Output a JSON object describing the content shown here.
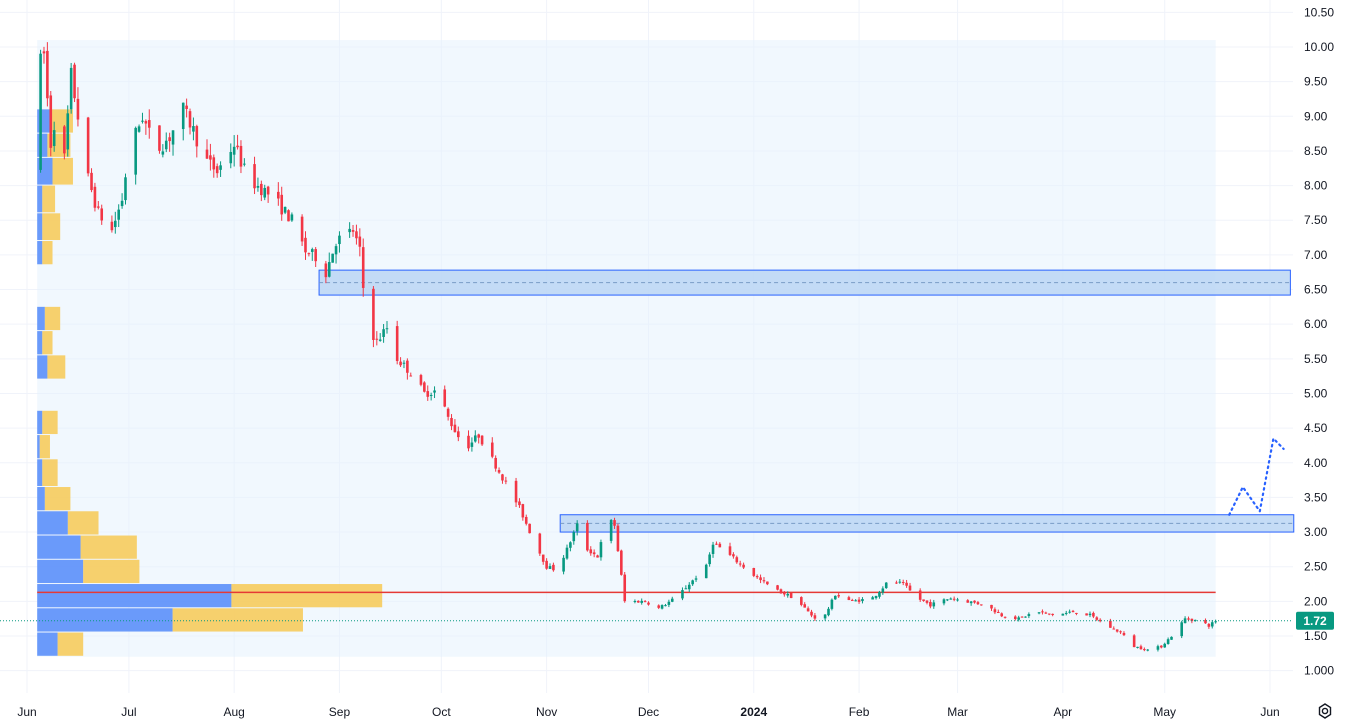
{
  "chart_data": {
    "type": "candlestick",
    "price_axis": {
      "ticks": [
        "10.50",
        "10.00",
        "9.50",
        "9.00",
        "8.50",
        "8.00",
        "7.50",
        "7.00",
        "6.50",
        "6.00",
        "5.50",
        "5.00",
        "4.50",
        "4.00",
        "3.50",
        "3.00",
        "2.50",
        "2.00",
        "1.50",
        "1.000"
      ],
      "range": [
        0.85,
        10.6
      ]
    },
    "time_axis": {
      "ticks": [
        {
          "label": "Jun",
          "date": "2023-06-01",
          "bold": false
        },
        {
          "label": "Jul",
          "date": "2023-07-01",
          "bold": false
        },
        {
          "label": "Aug",
          "date": "2023-08-01",
          "bold": false
        },
        {
          "label": "Sep",
          "date": "2023-09-01",
          "bold": false
        },
        {
          "label": "Oct",
          "date": "2023-10-01",
          "bold": false
        },
        {
          "label": "Nov",
          "date": "2023-11-01",
          "bold": false
        },
        {
          "label": "Dec",
          "date": "2023-12-01",
          "bold": false
        },
        {
          "label": "2024",
          "date": "2024-01-01",
          "bold": true
        },
        {
          "label": "Feb",
          "date": "2024-02-01",
          "bold": false
        },
        {
          "label": "Mar",
          "date": "2024-03-01",
          "bold": false
        },
        {
          "label": "Apr",
          "date": "2024-04-01",
          "bold": false
        },
        {
          "label": "May",
          "date": "2024-05-01",
          "bold": false
        },
        {
          "label": "Jun",
          "date": "2024-06-01",
          "bold": false
        }
      ],
      "range": [
        "2023-05-27",
        "2024-06-06"
      ]
    },
    "price_path": [
      [
        "2023-05-27",
        8.3
      ],
      [
        "2023-06-03",
        9.6
      ],
      [
        "2023-06-06",
        9.9
      ],
      [
        "2023-06-08",
        8.6
      ],
      [
        "2023-06-10",
        9.2
      ],
      [
        "2023-06-12",
        8.4
      ],
      [
        "2023-06-14",
        9.6
      ],
      [
        "2023-06-16",
        9.0
      ],
      [
        "2023-06-19",
        8.1
      ],
      [
        "2023-06-22",
        7.6
      ],
      [
        "2023-06-26",
        7.35
      ],
      [
        "2023-06-29",
        7.8
      ],
      [
        "2023-07-01",
        8.5
      ],
      [
        "2023-07-05",
        9.0
      ],
      [
        "2023-07-09",
        8.5
      ],
      [
        "2023-07-13",
        8.7
      ],
      [
        "2023-07-17",
        9.1
      ],
      [
        "2023-07-20",
        8.8
      ],
      [
        "2023-07-23",
        8.4
      ],
      [
        "2023-07-27",
        8.2
      ],
      [
        "2023-08-01",
        8.6
      ],
      [
        "2023-08-05",
        8.1
      ],
      [
        "2023-08-12",
        7.85
      ],
      [
        "2023-08-18",
        7.5
      ],
      [
        "2023-08-22",
        7.05
      ],
      [
        "2023-08-26",
        6.95
      ],
      [
        "2023-08-28",
        6.75
      ],
      [
        "2023-08-31",
        7.2
      ],
      [
        "2023-09-05",
        7.35
      ],
      [
        "2023-09-07",
        7.05
      ],
      [
        "2023-09-09",
        6.0
      ],
      [
        "2023-09-12",
        5.75
      ],
      [
        "2023-09-15",
        5.95
      ],
      [
        "2023-09-18",
        5.5
      ],
      [
        "2023-09-22",
        5.3
      ],
      [
        "2023-09-26",
        5.0
      ],
      [
        "2023-09-30",
        5.05
      ],
      [
        "2023-10-03",
        4.65
      ],
      [
        "2023-10-08",
        4.2
      ],
      [
        "2023-10-12",
        4.4
      ],
      [
        "2023-10-16",
        4.05
      ],
      [
        "2023-10-20",
        3.7
      ],
      [
        "2023-10-24",
        3.35
      ],
      [
        "2023-10-28",
        2.9
      ],
      [
        "2023-11-01",
        2.5
      ],
      [
        "2023-11-04",
        2.45
      ],
      [
        "2023-11-07",
        2.75
      ],
      [
        "2023-11-10",
        3.1
      ],
      [
        "2023-11-13",
        2.75
      ],
      [
        "2023-11-16",
        2.65
      ],
      [
        "2023-11-19",
        3.2
      ],
      [
        "2023-11-21",
        3.1
      ],
      [
        "2023-11-24",
        2.0
      ],
      [
        "2023-11-30",
        2.0
      ],
      [
        "2023-12-04",
        1.9
      ],
      [
        "2023-12-09",
        2.05
      ],
      [
        "2023-12-14",
        2.3
      ],
      [
        "2023-12-18",
        2.5
      ],
      [
        "2023-12-20",
        2.85
      ],
      [
        "2023-12-24",
        2.7
      ],
      [
        "2023-12-29",
        2.5
      ],
      [
        "2024-01-03",
        2.3
      ],
      [
        "2024-01-08",
        2.15
      ],
      [
        "2024-01-13",
        2.05
      ],
      [
        "2024-01-18",
        1.8
      ],
      [
        "2024-01-21",
        1.7
      ],
      [
        "2024-01-25",
        2.1
      ],
      [
        "2024-01-30",
        2.0
      ],
      [
        "2024-02-05",
        2.05
      ],
      [
        "2024-02-10",
        2.3
      ],
      [
        "2024-02-14",
        2.25
      ],
      [
        "2024-02-18",
        2.05
      ],
      [
        "2024-02-22",
        1.95
      ],
      [
        "2024-02-28",
        2.05
      ],
      [
        "2024-03-04",
        2.0
      ],
      [
        "2024-03-09",
        1.95
      ],
      [
        "2024-03-14",
        1.8
      ],
      [
        "2024-03-19",
        1.75
      ],
      [
        "2024-03-24",
        1.85
      ],
      [
        "2024-03-30",
        1.8
      ],
      [
        "2024-04-04",
        1.85
      ],
      [
        "2024-04-09",
        1.8
      ],
      [
        "2024-04-14",
        1.65
      ],
      [
        "2024-04-18",
        1.55
      ],
      [
        "2024-04-22",
        1.35
      ],
      [
        "2024-04-26",
        1.3
      ],
      [
        "2024-04-30",
        1.35
      ],
      [
        "2024-05-03",
        1.5
      ],
      [
        "2024-05-07",
        1.75
      ],
      [
        "2024-05-11",
        1.72
      ],
      [
        "2024-05-14",
        1.65
      ],
      [
        "2024-05-16",
        1.72
      ]
    ],
    "current_price": {
      "label": "1.72",
      "value": 1.72,
      "color": "#089981"
    },
    "colors": {
      "up": "#089981",
      "down": "#f23645",
      "zone": "#bbd6f5",
      "zone_border": "#2962ff",
      "level": "#e53935",
      "projection": "#2962ff"
    },
    "zones": [
      {
        "from": "2023-08-26",
        "to": "2024-06-07",
        "low": 6.42,
        "high": 6.78
      },
      {
        "from": "2023-11-05",
        "to": "2024-06-08",
        "low": 3.0,
        "high": 3.25
      }
    ],
    "horizontal_level": {
      "price": 2.13,
      "from": "2023-06-04",
      "to": "2024-05-16"
    },
    "projection_path": [
      [
        "2024-05-20",
        3.25
      ],
      [
        "2024-05-24",
        3.65
      ],
      [
        "2024-05-29",
        3.3
      ],
      [
        "2024-06-02",
        4.35
      ],
      [
        "2024-06-05",
        4.2
      ]
    ],
    "shaded_region": {
      "from": "2023-06-04",
      "to": "2024-05-16",
      "low": 1.2,
      "high": 10.1
    },
    "volume_profile": {
      "up_color": "#5b8ff9",
      "down_color": "#f7c548",
      "rows": [
        {
          "low": 8.75,
          "high": 9.1,
          "up": 0.05,
          "down": 0.09
        },
        {
          "low": 8.4,
          "high": 8.75,
          "up": 0.04,
          "down": 0.09
        },
        {
          "low": 8.0,
          "high": 8.4,
          "up": 0.06,
          "down": 0.08
        },
        {
          "low": 7.6,
          "high": 8.0,
          "up": 0.02,
          "down": 0.05
        },
        {
          "low": 7.2,
          "high": 7.6,
          "up": 0.02,
          "down": 0.07
        },
        {
          "low": 6.85,
          "high": 7.2,
          "up": 0.02,
          "down": 0.04
        },
        {
          "low": 5.9,
          "high": 6.25,
          "up": 0.03,
          "down": 0.06
        },
        {
          "low": 5.55,
          "high": 5.9,
          "up": 0.02,
          "down": 0.04
        },
        {
          "low": 5.2,
          "high": 5.55,
          "up": 0.04,
          "down": 0.07
        },
        {
          "low": 4.4,
          "high": 4.75,
          "up": 0.02,
          "down": 0.06
        },
        {
          "low": 4.05,
          "high": 4.4,
          "up": 0.01,
          "down": 0.04
        },
        {
          "low": 3.65,
          "high": 4.05,
          "up": 0.02,
          "down": 0.06
        },
        {
          "low": 3.3,
          "high": 3.65,
          "up": 0.03,
          "down": 0.1
        },
        {
          "low": 2.95,
          "high": 3.3,
          "up": 0.12,
          "down": 0.12
        },
        {
          "low": 2.6,
          "high": 2.95,
          "up": 0.17,
          "down": 0.22
        },
        {
          "low": 2.25,
          "high": 2.6,
          "up": 0.18,
          "down": 0.22
        },
        {
          "low": 1.9,
          "high": 2.25,
          "up": 0.76,
          "down": 0.59
        },
        {
          "low": 1.55,
          "high": 1.9,
          "up": 0.53,
          "down": 0.51
        },
        {
          "low": 1.2,
          "high": 1.55,
          "up": 0.08,
          "down": 0.1
        }
      ]
    }
  },
  "toolbar": {
    "settings_icon": "gear-icon"
  }
}
